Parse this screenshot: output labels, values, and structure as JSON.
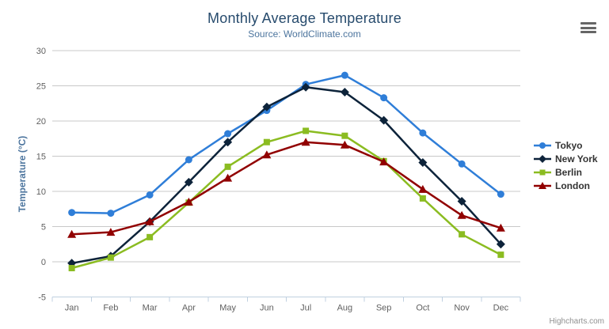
{
  "chart": {
    "credits": "Highcharts.com",
    "menu_icon": "hamburger-icon",
    "background": "#ffffff"
  },
  "chart_data": {
    "type": "line",
    "title": "Monthly Average Temperature",
    "subtitle": "Source: WorldClimate.com",
    "xlabel": "",
    "ylabel": "Temperature (°C)",
    "categories": [
      "Jan",
      "Feb",
      "Mar",
      "Apr",
      "May",
      "Jun",
      "Jul",
      "Aug",
      "Sep",
      "Oct",
      "Nov",
      "Dec"
    ],
    "ylim": [
      -5,
      30
    ],
    "yticks": [
      -5,
      0,
      5,
      10,
      15,
      20,
      25,
      30
    ],
    "grid": true,
    "legend_position": "right",
    "series": [
      {
        "name": "Tokyo",
        "color": "#2f7ed8",
        "marker": "circle",
        "values": [
          7.0,
          6.9,
          9.5,
          14.5,
          18.2,
          21.5,
          25.2,
          26.5,
          23.3,
          18.3,
          13.9,
          9.6
        ]
      },
      {
        "name": "New York",
        "color": "#0d233a",
        "marker": "diamond",
        "values": [
          -0.2,
          0.8,
          5.7,
          11.3,
          17.0,
          22.0,
          24.8,
          24.1,
          20.1,
          14.1,
          8.6,
          2.5
        ]
      },
      {
        "name": "Berlin",
        "color": "#8bbc21",
        "marker": "square",
        "values": [
          -0.9,
          0.6,
          3.5,
          8.4,
          13.5,
          17.0,
          18.6,
          17.9,
          14.3,
          9.0,
          3.9,
          1.0
        ]
      },
      {
        "name": "London",
        "color": "#910000",
        "marker": "triangle",
        "values": [
          3.9,
          4.2,
          5.7,
          8.5,
          11.9,
          15.2,
          17.0,
          16.6,
          14.2,
          10.3,
          6.6,
          4.8
        ]
      }
    ],
    "colors": {
      "title": "#274b6d",
      "subtitle": "#4d759e",
      "axis_title": "#4d759e",
      "tick_label": "#606060",
      "grid": "#c8c8c8",
      "axis_line": "#c0d0e0",
      "legend_text": "#333333",
      "credits": "#909090"
    }
  }
}
